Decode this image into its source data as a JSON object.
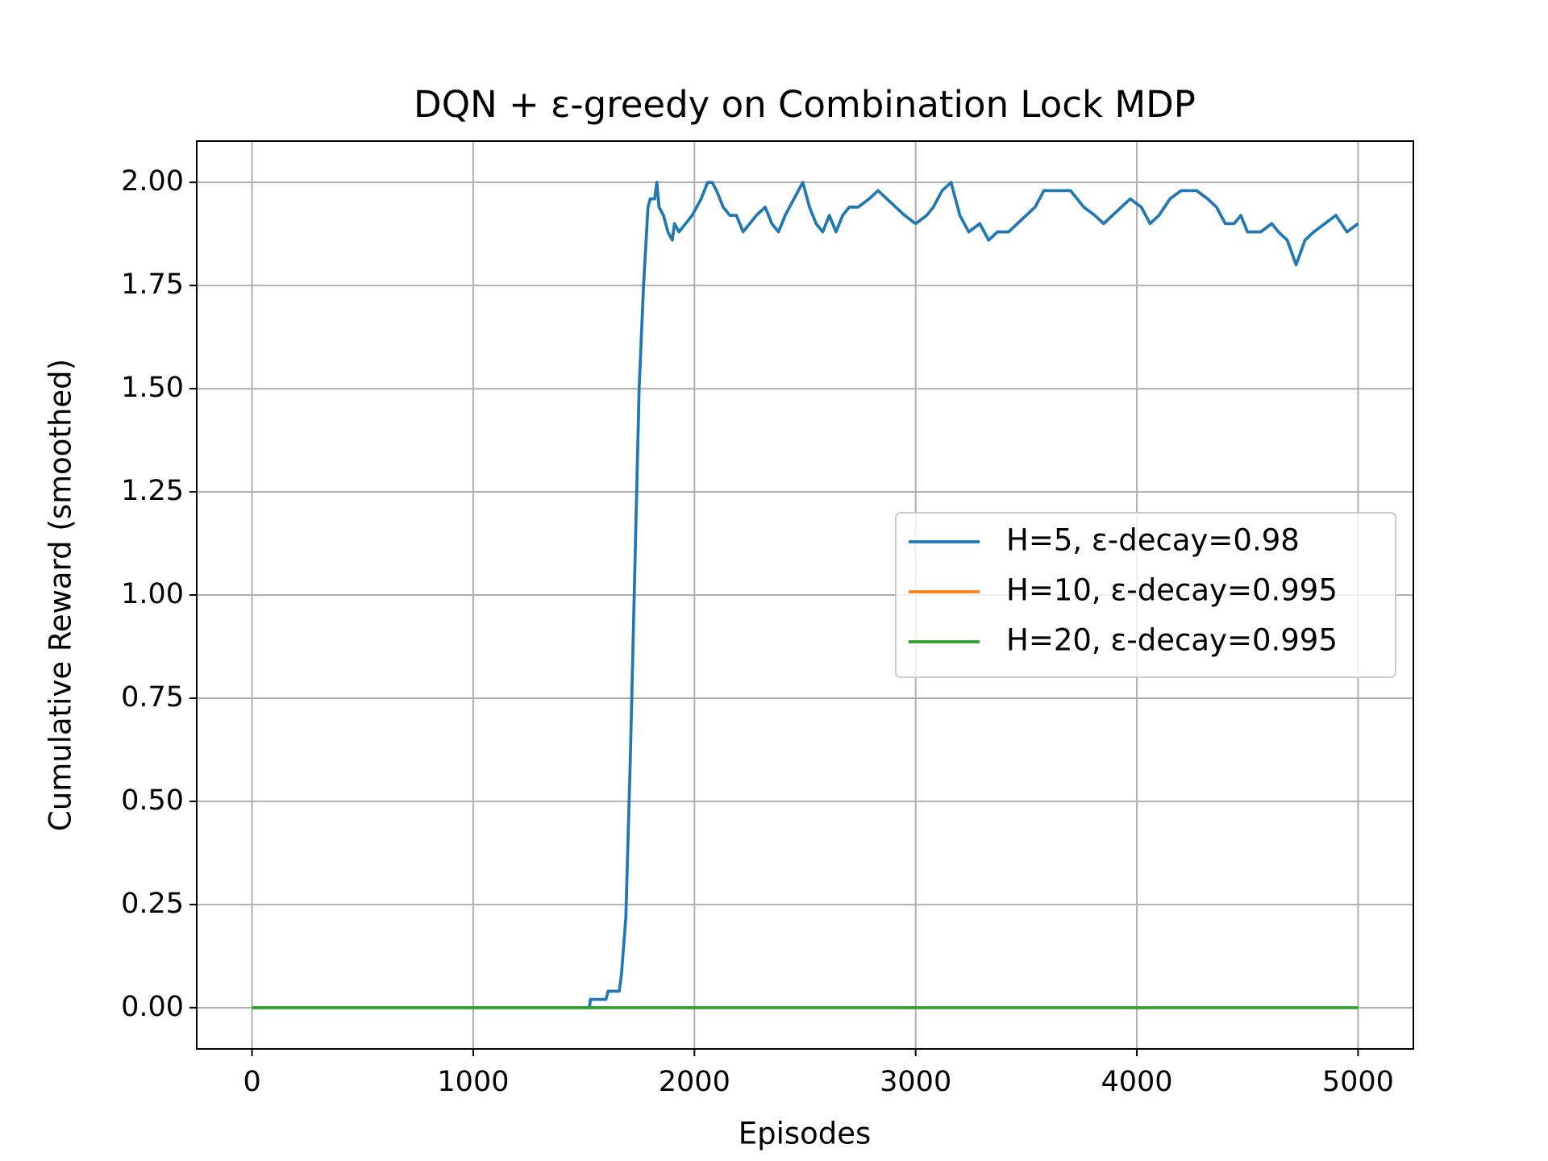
{
  "chart_data": {
    "type": "line",
    "title": "DQN + ε-greedy on Combination Lock MDP",
    "xlabel": "Episodes",
    "ylabel": "Cumulative Reward (smoothed)",
    "xlim": [
      -250,
      5250
    ],
    "ylim": [
      -0.1,
      2.1
    ],
    "xticks": [
      0,
      1000,
      2000,
      3000,
      4000,
      5000
    ],
    "yticks": [
      {
        "value": 0,
        "label": "0.00"
      },
      {
        "value": 0.25,
        "label": "0.25"
      },
      {
        "value": 0.5,
        "label": "0.50"
      },
      {
        "value": 0.75,
        "label": "0.75"
      },
      {
        "value": 1,
        "label": "1.00"
      },
      {
        "value": 1.25,
        "label": "1.25"
      },
      {
        "value": 1.5,
        "label": "1.50"
      },
      {
        "value": 1.75,
        "label": "1.75"
      },
      {
        "value": 2,
        "label": "2.00"
      }
    ],
    "grid": true,
    "legend": "center right",
    "series": [
      {
        "name": "H=5, ε-decay=0.98",
        "color": "#1f77b4",
        "x": [
          0,
          1525,
          1530,
          1600,
          1610,
          1660,
          1670,
          1690,
          1710,
          1730,
          1750,
          1770,
          1790,
          1800,
          1820,
          1830,
          1840,
          1860,
          1880,
          1900,
          1910,
          1930,
          1960,
          1990,
          2030,
          2060,
          2080,
          2100,
          2130,
          2160,
          2190,
          2220,
          2250,
          2280,
          2320,
          2350,
          2380,
          2410,
          2450,
          2490,
          2520,
          2550,
          2580,
          2610,
          2640,
          2670,
          2700,
          2740,
          2790,
          2830,
          2870,
          2910,
          2950,
          3000,
          3050,
          3080,
          3120,
          3160,
          3200,
          3240,
          3290,
          3330,
          3370,
          3420,
          3460,
          3500,
          3540,
          3580,
          3620,
          3700,
          3760,
          3810,
          3850,
          3890,
          3930,
          3970,
          4020,
          4060,
          4100,
          4150,
          4200,
          4270,
          4320,
          4360,
          4400,
          4440,
          4470,
          4500,
          4560,
          4610,
          4640,
          4680,
          4720,
          4760,
          4800,
          4850,
          4900,
          4950,
          5000
        ],
        "values": [
          0,
          0,
          0.02,
          0.02,
          0.04,
          0.04,
          0.08,
          0.22,
          0.6,
          1.05,
          1.5,
          1.75,
          1.94,
          1.96,
          1.96,
          2.0,
          1.94,
          1.92,
          1.88,
          1.86,
          1.9,
          1.88,
          1.9,
          1.92,
          1.96,
          2.0,
          2.0,
          1.98,
          1.94,
          1.92,
          1.92,
          1.88,
          1.9,
          1.92,
          1.94,
          1.9,
          1.88,
          1.92,
          1.96,
          2.0,
          1.94,
          1.9,
          1.88,
          1.92,
          1.88,
          1.92,
          1.94,
          1.94,
          1.96,
          1.98,
          1.96,
          1.94,
          1.92,
          1.9,
          1.92,
          1.94,
          1.98,
          2.0,
          1.92,
          1.88,
          1.9,
          1.86,
          1.88,
          1.88,
          1.9,
          1.92,
          1.94,
          1.98,
          1.98,
          1.98,
          1.94,
          1.92,
          1.9,
          1.92,
          1.94,
          1.96,
          1.94,
          1.9,
          1.92,
          1.96,
          1.98,
          1.98,
          1.96,
          1.94,
          1.9,
          1.9,
          1.92,
          1.88,
          1.88,
          1.9,
          1.88,
          1.86,
          1.8,
          1.86,
          1.88,
          1.9,
          1.92,
          1.88,
          1.9
        ]
      },
      {
        "name": "H=10, ε-decay=0.995",
        "color": "#ff7f0e",
        "x": [
          0,
          5000
        ],
        "values": [
          0,
          0
        ]
      },
      {
        "name": "H=20, ε-decay=0.995",
        "color": "#2ca02c",
        "x": [
          0,
          5000
        ],
        "values": [
          0,
          0
        ]
      }
    ]
  }
}
